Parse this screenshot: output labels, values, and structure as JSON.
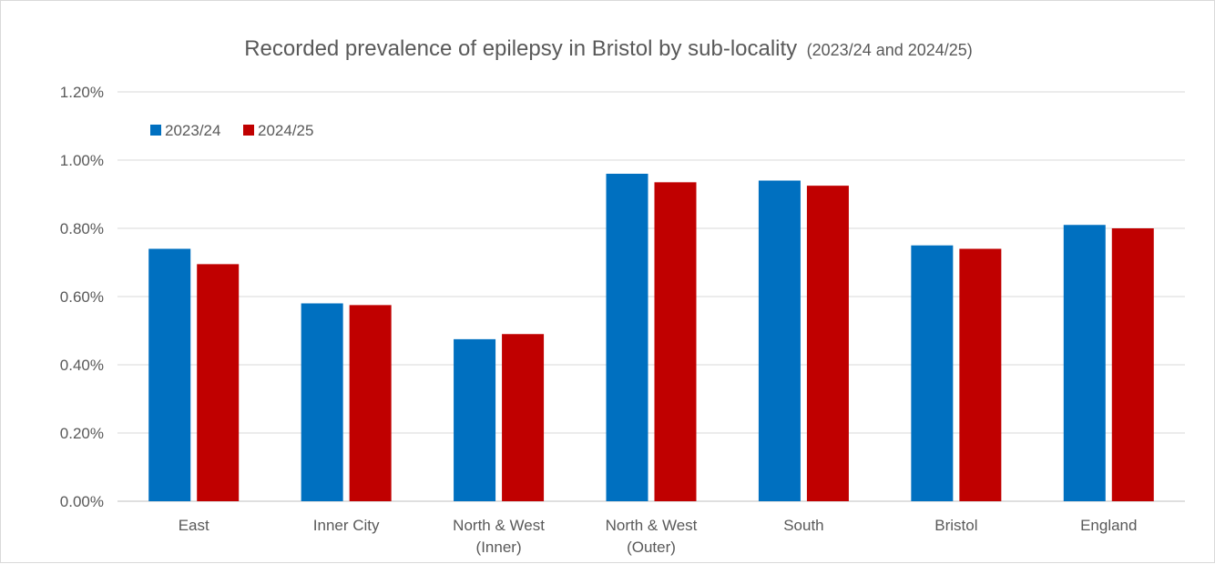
{
  "chart_data": {
    "type": "bar",
    "title": "Recorded prevalence of epilepsy in Bristol by sub-locality",
    "subtitle": "(2023/24 and 2024/25)",
    "categories": [
      [
        "East"
      ],
      [
        "Inner City"
      ],
      [
        "North & West",
        "(Inner)"
      ],
      [
        "North & West",
        "(Outer)"
      ],
      [
        "South"
      ],
      [
        "Bristol"
      ],
      [
        "England"
      ]
    ],
    "series": [
      {
        "name": "2023/24",
        "color": "#0070c0",
        "values": [
          0.74,
          0.58,
          0.475,
          0.96,
          0.94,
          0.75,
          0.81
        ]
      },
      {
        "name": "2024/25",
        "color": "#c00000",
        "values": [
          0.695,
          0.575,
          0.49,
          0.935,
          0.925,
          0.74,
          0.8
        ]
      }
    ],
    "ylim": [
      0,
      1.2
    ],
    "yticks": [
      "0.00%",
      "0.20%",
      "0.40%",
      "0.60%",
      "0.80%",
      "1.00%",
      "1.20%"
    ],
    "ytick_values": [
      0,
      0.2,
      0.4,
      0.6,
      0.8,
      1.0,
      1.2
    ],
    "grid": true,
    "legend_position": "top-left"
  }
}
